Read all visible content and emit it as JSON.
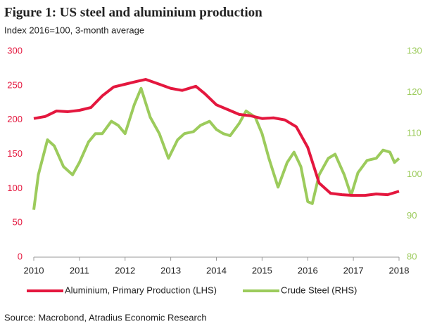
{
  "chart_data": {
    "type": "line",
    "title": "Figure 1: US steel and aluminium production",
    "subtitle": "Index 2016=100, 3-month average",
    "source": "Source: Macrobond, Atradius Economic Research",
    "xlim": [
      2010,
      2018
    ],
    "xticks": [
      2010,
      2011,
      2012,
      2013,
      2014,
      2015,
      2016,
      2017,
      2018
    ],
    "ylim": [
      0,
      300
    ],
    "yticks": [
      0,
      50,
      100,
      150,
      200,
      250,
      300
    ],
    "y2lim": [
      80,
      130
    ],
    "y2ticks": [
      80,
      90,
      100,
      110,
      120,
      130
    ],
    "series": [
      {
        "name": "Aluminium, Primary Production (LHS)",
        "color": "#e4173e",
        "axis": "y",
        "x": [
          2010,
          2010.25,
          2010.5,
          2010.75,
          2011,
          2011.25,
          2011.5,
          2011.75,
          2012,
          2012.25,
          2012.45,
          2012.75,
          2013,
          2013.25,
          2013.55,
          2013.75,
          2014,
          2014.25,
          2014.5,
          2014.75,
          2015,
          2015.25,
          2015.5,
          2015.75,
          2016,
          2016.25,
          2016.5,
          2016.75,
          2017,
          2017.25,
          2017.5,
          2017.75,
          2018
        ],
        "values": [
          202,
          205,
          213,
          212,
          214,
          218,
          235,
          248,
          252,
          256,
          259,
          252,
          246,
          243,
          249,
          238,
          222,
          215,
          208,
          206,
          202,
          203,
          200,
          190,
          160,
          108,
          93,
          91,
          90,
          90,
          92,
          91,
          96
        ]
      },
      {
        "name": "Crude Steel (RHS)",
        "color": "#9ccb5c",
        "axis": "y2",
        "x": [
          2010,
          2010.1,
          2010.3,
          2010.45,
          2010.65,
          2010.85,
          2011,
          2011.2,
          2011.35,
          2011.5,
          2011.7,
          2011.85,
          2012,
          2012.2,
          2012.35,
          2012.55,
          2012.75,
          2012.95,
          2013.15,
          2013.3,
          2013.5,
          2013.65,
          2013.85,
          2014,
          2014.15,
          2014.3,
          2014.5,
          2014.65,
          2014.85,
          2015,
          2015.15,
          2015.35,
          2015.55,
          2015.7,
          2015.85,
          2016,
          2016.1,
          2016.25,
          2016.45,
          2016.6,
          2016.8,
          2016.95,
          2017.1,
          2017.3,
          2017.5,
          2017.65,
          2017.8,
          2017.9,
          2018
        ],
        "values": [
          91.5,
          100,
          108.5,
          107,
          102,
          100,
          103,
          108,
          110,
          110,
          113,
          112,
          110,
          117,
          121,
          114,
          110,
          104,
          108.5,
          110,
          110.5,
          112,
          113,
          111,
          110,
          109.5,
          112.5,
          115.5,
          114,
          110,
          104,
          97,
          103,
          105.5,
          102,
          93.5,
          93,
          100,
          104,
          105,
          100,
          95,
          100.5,
          103.5,
          104,
          106,
          105.5,
          103,
          104
        ]
      }
    ]
  }
}
